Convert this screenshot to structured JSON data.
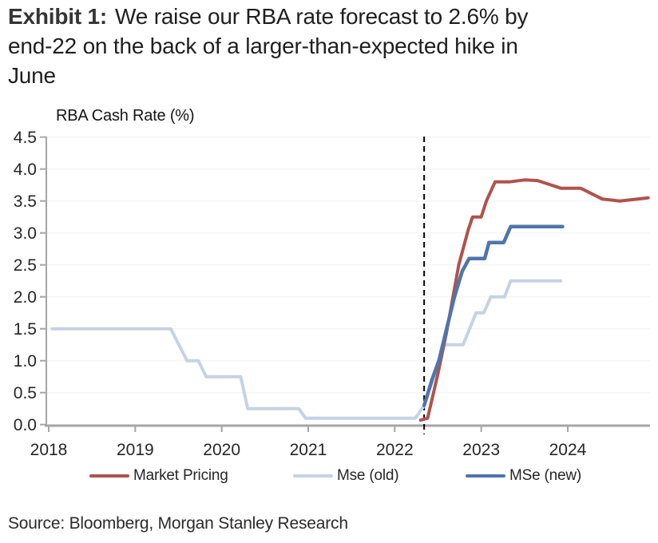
{
  "title": {
    "exhibit_label": "Exhibit 1:",
    "line1": "We raise our RBA rate forecast to 2.6% by",
    "line2": "end-22 on the back of a larger-than-expected hike in",
    "line3": "June"
  },
  "footer": {
    "source": "Source: Bloomberg, Morgan Stanley Research"
  },
  "chart_data": {
    "type": "line",
    "title": "RBA Cash Rate (%)",
    "xlabel": "",
    "ylabel": "RBA Cash Rate (%)",
    "ylim": [
      0.0,
      4.5
    ],
    "xlim": [
      2018,
      2025
    ],
    "grid": true,
    "legend_position": "bottom",
    "y_ticks": [
      "4.5",
      "4.0",
      "3.5",
      "3.0",
      "2.5",
      "2.0",
      "1.5",
      "1.0",
      "0.5",
      "0.0"
    ],
    "x_ticks": [
      "2018",
      "2019",
      "2020",
      "2021",
      "2022",
      "2023",
      "2024"
    ],
    "forecast_divider_x": 2022.34,
    "divider_color": "#000000",
    "axis_color": "#a6a6a6",
    "grid_color": "#f0f0f0",
    "series": [
      {
        "name": "Market Pricing",
        "color": "#b0524b",
        "z": 2,
        "width": 4,
        "points": [
          [
            2022.3,
            0.07
          ],
          [
            2022.38,
            0.1
          ],
          [
            2022.5,
            0.8
          ],
          [
            2022.6,
            1.45
          ],
          [
            2022.74,
            2.5
          ],
          [
            2022.85,
            3.05
          ],
          [
            2022.9,
            3.25
          ],
          [
            2023.0,
            3.25
          ],
          [
            2023.06,
            3.5
          ],
          [
            2023.16,
            3.8
          ],
          [
            2023.33,
            3.8
          ],
          [
            2023.5,
            3.83
          ],
          [
            2023.65,
            3.82
          ],
          [
            2023.92,
            3.7
          ],
          [
            2024.15,
            3.7
          ],
          [
            2024.4,
            3.53
          ],
          [
            2024.6,
            3.5
          ],
          [
            2024.93,
            3.55
          ]
        ]
      },
      {
        "name": "Mse (old)",
        "color": "#c5d2e8",
        "z": 1,
        "width": 4,
        "points": [
          [
            2018.04,
            1.5
          ],
          [
            2019.41,
            1.5
          ],
          [
            2019.6,
            1.0
          ],
          [
            2019.73,
            1.0
          ],
          [
            2019.82,
            0.75
          ],
          [
            2020.22,
            0.75
          ],
          [
            2020.3,
            0.25
          ],
          [
            2020.89,
            0.25
          ],
          [
            2020.97,
            0.1
          ],
          [
            2022.24,
            0.1
          ],
          [
            2022.34,
            0.3
          ],
          [
            2022.44,
            0.7
          ],
          [
            2022.57,
            1.25
          ],
          [
            2022.79,
            1.25
          ],
          [
            2022.94,
            1.75
          ],
          [
            2023.03,
            1.75
          ],
          [
            2023.11,
            2.0
          ],
          [
            2023.27,
            2.0
          ],
          [
            2023.34,
            2.25
          ],
          [
            2023.92,
            2.25
          ]
        ]
      },
      {
        "name": "MSe (new)",
        "color": "#4e76ad",
        "z": 3,
        "width": 4.5,
        "points": [
          [
            2022.34,
            0.3
          ],
          [
            2022.43,
            0.7
          ],
          [
            2022.51,
            1.0
          ],
          [
            2022.6,
            1.5
          ],
          [
            2022.69,
            2.0
          ],
          [
            2022.78,
            2.4
          ],
          [
            2022.86,
            2.6
          ],
          [
            2023.04,
            2.6
          ],
          [
            2023.09,
            2.85
          ],
          [
            2023.26,
            2.85
          ],
          [
            2023.34,
            3.1
          ],
          [
            2023.94,
            3.1
          ]
        ]
      }
    ]
  }
}
